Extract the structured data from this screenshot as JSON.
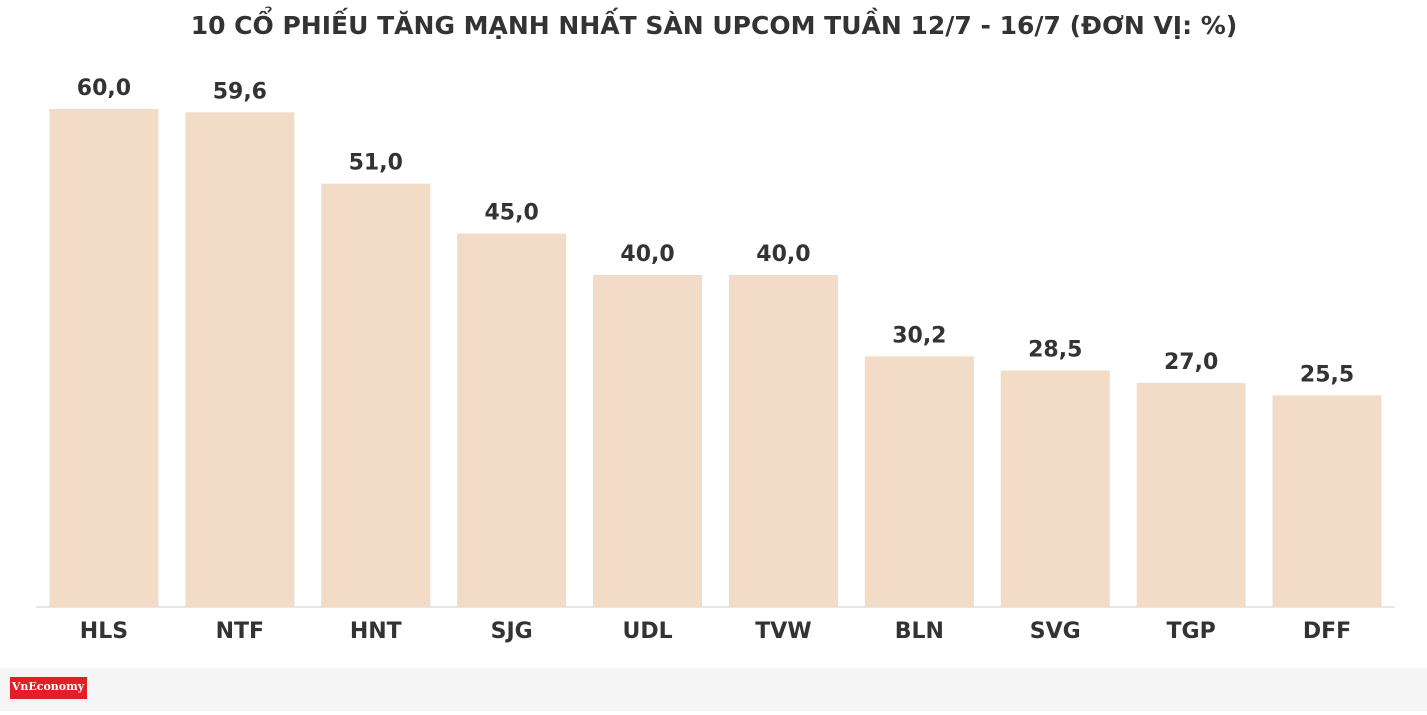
{
  "chart_data": {
    "type": "bar",
    "title": "10 CỔ PHIẾU TĂNG MẠNH NHẤT SÀN UPCOM TUẦN 12/7 - 16/7 (ĐƠN VỊ: %)",
    "categories": [
      "HLS",
      "NTF",
      "HNT",
      "SJG",
      "UDL",
      "TVW",
      "BLN",
      "SVG",
      "TGP",
      "DFF"
    ],
    "values": [
      60.0,
      59.6,
      51.0,
      45.0,
      40.0,
      40.0,
      30.2,
      28.5,
      27.0,
      25.5
    ],
    "value_labels": [
      "60,0",
      "59,6",
      "51,0",
      "45,0",
      "40,0",
      "40,0",
      "30,2",
      "28,5",
      "27,0",
      "25,5"
    ],
    "color": "#f2dbc7",
    "ylim": [
      0,
      60
    ]
  },
  "logo": "VnEconomy"
}
